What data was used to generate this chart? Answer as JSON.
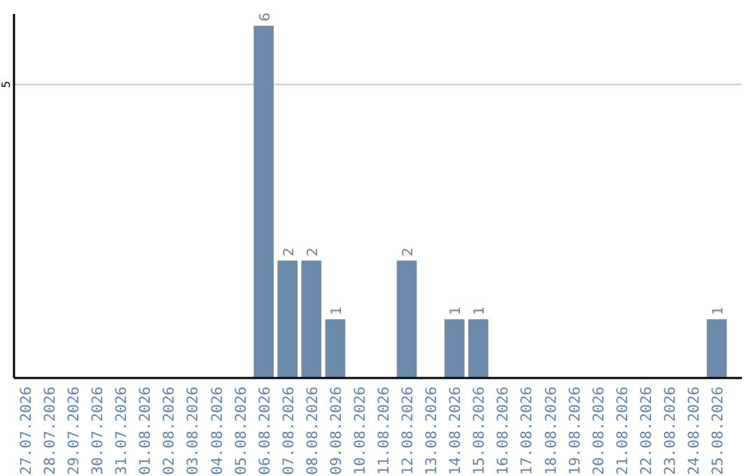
{
  "chart_data": {
    "type": "bar",
    "categories": [
      "27.07.2026",
      "28.07.2026",
      "29.07.2026",
      "30.07.2026",
      "31.07.2026",
      "01.08.2026",
      "02.08.2026",
      "03.08.2026",
      "04.08.2026",
      "05.08.2026",
      "06.08.2026",
      "07.08.2026",
      "08.08.2026",
      "09.08.2026",
      "10.08.2026",
      "11.08.2026",
      "12.08.2026",
      "13.08.2026",
      "14.08.2026",
      "15.08.2026",
      "16.08.2026",
      "17.08.2026",
      "18.08.2026",
      "19.08.2026",
      "20.08.2026",
      "21.08.2026",
      "22.08.2026",
      "23.08.2026",
      "24.08.2026",
      "25.08.2026"
    ],
    "values": [
      0,
      0,
      0,
      0,
      0,
      0,
      0,
      0,
      0,
      0,
      6,
      2,
      2,
      1,
      0,
      0,
      2,
      0,
      1,
      1,
      0,
      0,
      0,
      0,
      0,
      0,
      0,
      0,
      0,
      1
    ],
    "value_labels": [
      null,
      null,
      null,
      null,
      null,
      null,
      null,
      null,
      null,
      null,
      "6",
      "2",
      "2",
      "1",
      null,
      null,
      "2",
      null,
      "1",
      "1",
      null,
      null,
      null,
      null,
      null,
      null,
      null,
      null,
      null,
      "1"
    ],
    "color": "#6d8cab",
    "ylim": [
      0,
      6.2
    ],
    "yticks": [
      5
    ],
    "grid": "y"
  }
}
